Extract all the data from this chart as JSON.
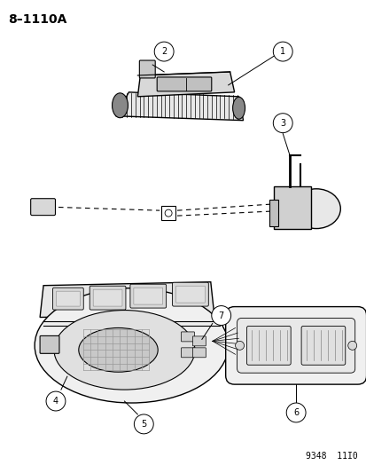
{
  "title": "8–1110A",
  "watermark": "9348  11I0",
  "bg_color": "#ffffff",
  "title_fontsize": 10,
  "watermark_fontsize": 7,
  "figsize": [
    4.14,
    5.33
  ],
  "dpi": 100
}
